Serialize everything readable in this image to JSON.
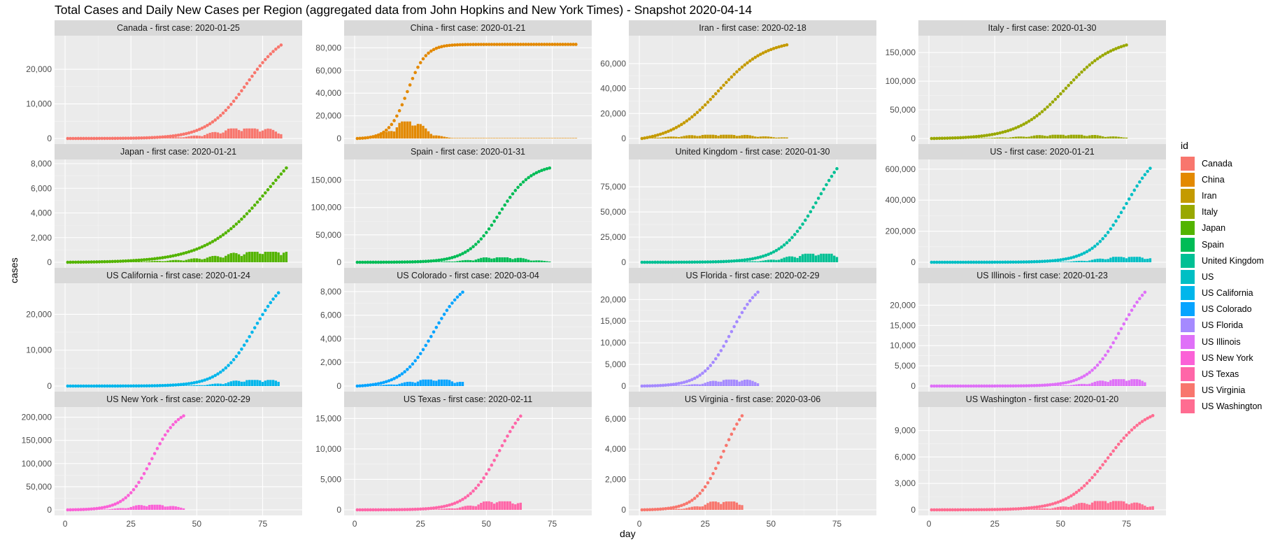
{
  "chart_data": {
    "type": "facet",
    "title": "Total Cases and Daily New Cases per Region  (aggregated data from John Hopkins and New York Times) - Snapshot 2020-04-14",
    "xlabel": "day",
    "ylabel": "cases",
    "x_ticks": [
      0,
      25,
      50,
      75
    ],
    "xlim": [
      -4,
      90
    ],
    "legend": {
      "title": "id",
      "placement": "right",
      "entries": [
        {
          "label": "Canada",
          "color": "#F8766D"
        },
        {
          "label": "China",
          "color": "#E38900"
        },
        {
          "label": "Iran",
          "color": "#C49A00"
        },
        {
          "label": "Italy",
          "color": "#99A800"
        },
        {
          "label": "Japan",
          "color": "#53B400"
        },
        {
          "label": "Spain",
          "color": "#00BC56"
        },
        {
          "label": "United Kingdom",
          "color": "#00C094"
        },
        {
          "label": "US",
          "color": "#00BFC4"
        },
        {
          "label": "US California",
          "color": "#00B6EB"
        },
        {
          "label": "US Colorado",
          "color": "#06A4FF"
        },
        {
          "label": "US Florida",
          "color": "#A58AFF"
        },
        {
          "label": "US Illinois",
          "color": "#DF70F8"
        },
        {
          "label": "US New York",
          "color": "#FB61D7"
        },
        {
          "label": "US Texas",
          "color": "#FF66A8"
        },
        {
          "label": "US Virginia",
          "color": "#F8766D"
        },
        {
          "label": "US Washington",
          "color": "#FF6C91"
        }
      ]
    },
    "panels": [
      {
        "strip": "Canada  - first case: 2020-01-25",
        "color": "#F8766D",
        "days": 82,
        "total": 27000,
        "mid": 69,
        "scale": 7.5,
        "daily_peak": 2900,
        "ymax": 28500,
        "yticks": [
          0,
          10000,
          20000
        ]
      },
      {
        "strip": "China  - first case: 2020-01-21",
        "color": "#E38900",
        "days": 84,
        "total": 83000,
        "mid": 20,
        "scale": 3.5,
        "daily_peak": 15000,
        "ymax": 87000,
        "yticks": [
          0,
          20000,
          40000,
          60000,
          80000
        ]
      },
      {
        "strip": "Iran  - first case: 2020-02-18",
        "color": "#C49A00",
        "days": 56,
        "total": 75000,
        "mid": 30,
        "scale": 9,
        "daily_peak": 3000,
        "ymax": 79000,
        "yticks": [
          0,
          20000,
          40000,
          60000
        ]
      },
      {
        "strip": "Italy  - first case: 2020-01-30",
        "color": "#99A800",
        "days": 75,
        "total": 163000,
        "mid": 52,
        "scale": 9,
        "daily_peak": 6500,
        "ymax": 172000,
        "yticks": [
          0,
          50000,
          100000,
          150000
        ]
      },
      {
        "strip": "Japan  - first case: 2020-01-21",
        "color": "#53B400",
        "days": 84,
        "total": 7650,
        "mid": 78,
        "scale": 12,
        "daily_peak": 850,
        "ymax": 8000,
        "yticks": [
          0,
          2000,
          4000,
          6000,
          8000
        ]
      },
      {
        "strip": "Spain  - first case: 2020-01-31",
        "color": "#00BC56",
        "days": 74,
        "total": 172000,
        "mid": 55,
        "scale": 6,
        "daily_peak": 9000,
        "ymax": 180000,
        "yticks": [
          0,
          50000,
          100000,
          150000
        ]
      },
      {
        "strip": "United Kingdom  - first case: 2020-01-30",
        "color": "#00C094",
        "days": 75,
        "total": 93000,
        "mid": 68,
        "scale": 7,
        "daily_peak": 8500,
        "ymax": 98000,
        "yticks": [
          0,
          25000,
          50000,
          75000
        ]
      },
      {
        "strip": "US  - first case: 2020-01-21",
        "color": "#00BFC4",
        "days": 84,
        "total": 605000,
        "mid": 75,
        "scale": 6.5,
        "daily_peak": 35000,
        "ymax": 635000,
        "yticks": [
          0,
          200000,
          400000,
          600000
        ]
      },
      {
        "strip": "US California - first case: 2020-01-24",
        "color": "#00B6EB",
        "days": 81,
        "total": 26000,
        "mid": 72,
        "scale": 6.5,
        "daily_peak": 1700,
        "ymax": 27500,
        "yticks": [
          0,
          10000,
          20000
        ]
      },
      {
        "strip": "US Colorado - first case: 2020-03-04",
        "color": "#06A4FF",
        "days": 41,
        "total": 7950,
        "mid": 30,
        "scale": 6,
        "daily_peak": 550,
        "ymax": 8350,
        "yticks": [
          0,
          2000,
          4000,
          6000,
          8000
        ]
      },
      {
        "strip": "US Florida - first case: 2020-02-29",
        "color": "#A58AFF",
        "days": 45,
        "total": 21700,
        "mid": 35,
        "scale": 5.5,
        "daily_peak": 1500,
        "ymax": 22800,
        "yticks": [
          0,
          5000,
          10000,
          15000,
          20000
        ]
      },
      {
        "strip": "US Illinois - first case: 2020-01-23",
        "color": "#DF70F8",
        "days": 82,
        "total": 23200,
        "mid": 73,
        "scale": 6,
        "daily_peak": 1700,
        "ymax": 24400,
        "yticks": [
          0,
          5000,
          10000,
          15000,
          20000
        ]
      },
      {
        "strip": "US New York - first case: 2020-02-29",
        "color": "#FB61D7",
        "days": 45,
        "total": 203000,
        "mid": 33,
        "scale": 5,
        "daily_peak": 11000,
        "ymax": 213000,
        "yticks": [
          0,
          50000,
          100000,
          150000,
          200000
        ]
      },
      {
        "strip": "US Texas - first case: 2020-02-11",
        "color": "#FF66A8",
        "days": 63,
        "total": 15400,
        "mid": 55,
        "scale": 6,
        "daily_peak": 1400,
        "ymax": 16200,
        "yticks": [
          0,
          5000,
          10000,
          15000
        ]
      },
      {
        "strip": "US Virginia - first case: 2020-03-06",
        "color": "#F8766D",
        "days": 39,
        "total": 6200,
        "mid": 32,
        "scale": 5,
        "daily_peak": 550,
        "ymax": 6500,
        "yticks": [
          0,
          2000,
          4000,
          6000
        ]
      },
      {
        "strip": "US Washington - first case: 2020-01-20",
        "color": "#FF6C91",
        "days": 85,
        "total": 10700,
        "mid": 68,
        "scale": 7.5,
        "daily_peak": 1000,
        "ymax": 11200,
        "yticks": [
          0,
          3000,
          6000,
          9000
        ]
      }
    ]
  }
}
